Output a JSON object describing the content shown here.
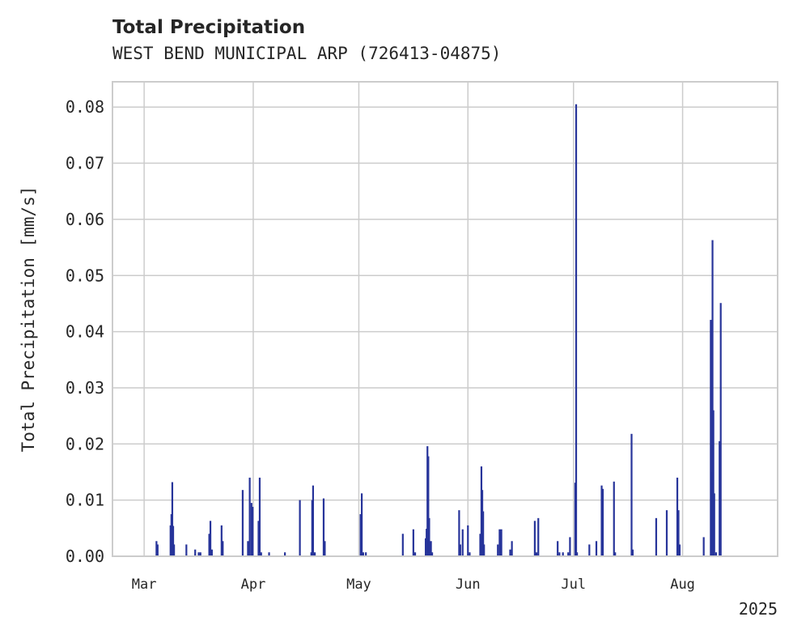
{
  "chart_data": {
    "type": "bar",
    "title": "Total Precipitation",
    "subtitle": "WEST BEND MUNICIPAL ARP (726413-04875)",
    "xlabel": "",
    "ylabel": "Total Precipitation [mm/s]",
    "ylim": [
      0,
      0.0845
    ],
    "xlim": [
      "2025-02-20",
      "2025-08-28"
    ],
    "yticks": [
      "0.00",
      "0.01",
      "0.02",
      "0.03",
      "0.04",
      "0.05",
      "0.06",
      "0.07",
      "0.08"
    ],
    "xticks": [
      {
        "date": "2025-03-01",
        "label": "Mar"
      },
      {
        "date": "2025-04-01",
        "label": "Apr"
      },
      {
        "date": "2025-05-01",
        "label": "May"
      },
      {
        "date": "2025-06-01",
        "label": "Jun"
      },
      {
        "date": "2025-07-01",
        "label": "Jul"
      },
      {
        "date": "2025-08-01",
        "label": "Aug"
      }
    ],
    "year_label": "2025",
    "grid": true,
    "bar_color": "#27349a",
    "series": [
      {
        "points": [
          [
            "2025-03-04T12",
            0.0027
          ],
          [
            "2025-03-04T20",
            0.0021
          ],
          [
            "2025-03-08T12",
            0.0055
          ],
          [
            "2025-03-08T18",
            0.0075
          ],
          [
            "2025-03-09T00",
            0.0132
          ],
          [
            "2025-03-09T06",
            0.0054
          ],
          [
            "2025-03-09T12",
            0.0021
          ],
          [
            "2025-03-13T00",
            0.0021
          ],
          [
            "2025-03-15T12",
            0.0012
          ],
          [
            "2025-03-16T12",
            0.0007
          ],
          [
            "2025-03-17T00",
            0.0007
          ],
          [
            "2025-03-19T12",
            0.004
          ],
          [
            "2025-03-19T20",
            0.0063
          ],
          [
            "2025-03-20T06",
            0.0012
          ],
          [
            "2025-03-23T00",
            0.0055
          ],
          [
            "2025-03-23T08",
            0.0027
          ],
          [
            "2025-03-29T00",
            0.0118
          ],
          [
            "2025-03-30T12",
            0.0027
          ],
          [
            "2025-03-31T00",
            0.014
          ],
          [
            "2025-03-31T12",
            0.0095
          ],
          [
            "2025-03-31T20",
            0.0088
          ],
          [
            "2025-04-02T12",
            0.0063
          ],
          [
            "2025-04-02T20",
            0.014
          ],
          [
            "2025-04-03T06",
            0.0007
          ],
          [
            "2025-04-05T12",
            0.0007
          ],
          [
            "2025-04-10T00",
            0.0007
          ],
          [
            "2025-04-14T06",
            0.01
          ],
          [
            "2025-04-17T12",
            0.0007
          ],
          [
            "2025-04-17T18",
            0.01
          ],
          [
            "2025-04-18T00",
            0.0126
          ],
          [
            "2025-04-18T12",
            0.0007
          ],
          [
            "2025-04-21T00",
            0.0103
          ],
          [
            "2025-04-21T08",
            0.0027
          ],
          [
            "2025-05-01T12",
            0.0075
          ],
          [
            "2025-05-01T20",
            0.0112
          ],
          [
            "2025-05-02T06",
            0.0007
          ],
          [
            "2025-05-03T00",
            0.0007
          ],
          [
            "2025-05-13T12",
            0.004
          ],
          [
            "2025-05-16T12",
            0.0048
          ],
          [
            "2025-05-17T00",
            0.0007
          ],
          [
            "2025-05-20T00",
            0.0032
          ],
          [
            "2025-05-20T06",
            0.0049
          ],
          [
            "2025-05-20T12",
            0.0196
          ],
          [
            "2025-05-20T18",
            0.0178
          ],
          [
            "2025-05-21T00",
            0.0068
          ],
          [
            "2025-05-21T12",
            0.0027
          ],
          [
            "2025-05-21T20",
            0.0007
          ],
          [
            "2025-05-29T12",
            0.0082
          ],
          [
            "2025-05-29T20",
            0.0021
          ],
          [
            "2025-05-30T12",
            0.0048
          ],
          [
            "2025-06-01T00",
            0.0055
          ],
          [
            "2025-06-01T12",
            0.0007
          ],
          [
            "2025-06-04T12",
            0.004
          ],
          [
            "2025-06-04T20",
            0.016
          ],
          [
            "2025-06-05T02",
            0.0118
          ],
          [
            "2025-06-05T08",
            0.008
          ],
          [
            "2025-06-05T14",
            0.0021
          ],
          [
            "2025-06-09T12",
            0.0021
          ],
          [
            "2025-06-10T00",
            0.0048
          ],
          [
            "2025-06-10T12",
            0.0048
          ],
          [
            "2025-06-13T00",
            0.0012
          ],
          [
            "2025-06-13T12",
            0.0027
          ],
          [
            "2025-06-20T00",
            0.0063
          ],
          [
            "2025-06-20T12",
            0.0007
          ],
          [
            "2025-06-21T00",
            0.0068
          ],
          [
            "2025-06-26T12",
            0.0027
          ],
          [
            "2025-06-27T00",
            0.0007
          ],
          [
            "2025-06-28T00",
            0.0007
          ],
          [
            "2025-06-29T12",
            0.0007
          ],
          [
            "2025-06-30T00",
            0.0034
          ],
          [
            "2025-07-01T12",
            0.0131
          ],
          [
            "2025-07-01T18",
            0.0805
          ],
          [
            "2025-07-02T00",
            0.0007
          ],
          [
            "2025-07-05T12",
            0.0021
          ],
          [
            "2025-07-07T12",
            0.0027
          ],
          [
            "2025-07-09T00",
            0.0126
          ],
          [
            "2025-07-09T08",
            0.012
          ],
          [
            "2025-07-12T12",
            0.0133
          ],
          [
            "2025-07-12T20",
            0.0007
          ],
          [
            "2025-07-17T12",
            0.0218
          ],
          [
            "2025-07-17T20",
            0.0012
          ],
          [
            "2025-07-24T12",
            0.0068
          ],
          [
            "2025-07-27T12",
            0.0082
          ],
          [
            "2025-07-30T12",
            0.014
          ],
          [
            "2025-07-30T20",
            0.0082
          ],
          [
            "2025-07-31T04",
            0.0021
          ],
          [
            "2025-08-07T00",
            0.0034
          ],
          [
            "2025-08-09T00",
            0.0421
          ],
          [
            "2025-08-09T08",
            0.015
          ],
          [
            "2025-08-09T12",
            0.0563
          ],
          [
            "2025-08-09T18",
            0.026
          ],
          [
            "2025-08-10T00",
            0.0112
          ],
          [
            "2025-08-10T12",
            0.0007
          ],
          [
            "2025-08-11T12",
            0.0205
          ],
          [
            "2025-08-11T20",
            0.0451
          ]
        ]
      }
    ]
  }
}
